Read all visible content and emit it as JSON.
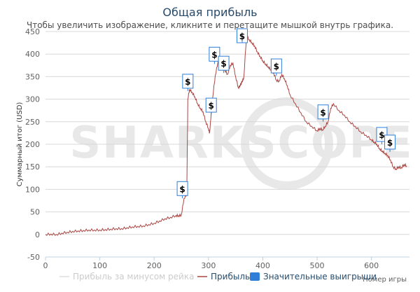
{
  "chart_data": {
    "type": "line",
    "title": "Общая прибыль",
    "subtitle": "Чтобы увеличить изображение, кликните и перетащите мышкой внутрь графика.",
    "ylabel": "Суммарный итог (USD)",
    "xlabel": "Номер игры",
    "xlim": [
      0,
      670
    ],
    "ylim": [
      -50,
      450
    ],
    "xticks": [
      0,
      100,
      200,
      300,
      400,
      500,
      600
    ],
    "yticks": [
      -50,
      0,
      50,
      100,
      150,
      200,
      250,
      300,
      350,
      400,
      450
    ],
    "grid": true,
    "legend_placement": "bottom",
    "series": [
      {
        "name": "Прибыль",
        "color": "#aa4643",
        "x": [
          0,
          10,
          20,
          30,
          40,
          50,
          60,
          70,
          80,
          90,
          100,
          110,
          120,
          130,
          140,
          150,
          160,
          170,
          180,
          190,
          200,
          210,
          220,
          230,
          240,
          245,
          250,
          255,
          260,
          262,
          265,
          270,
          275,
          280,
          285,
          290,
          295,
          300,
          302,
          305,
          310,
          315,
          320,
          325,
          330,
          335,
          340,
          345,
          350,
          355,
          358,
          360,
          362,
          365,
          370,
          375,
          380,
          385,
          390,
          395,
          400,
          405,
          410,
          415,
          420,
          425,
          430,
          435,
          440,
          445,
          450,
          460,
          470,
          480,
          490,
          500,
          505,
          510,
          515,
          520,
          525,
          530,
          540,
          550,
          560,
          570,
          580,
          590,
          600,
          605,
          610,
          615,
          620,
          625,
          630,
          635,
          640,
          645,
          650,
          655,
          660,
          665
        ],
        "y": [
          0,
          1,
          0,
          3,
          5,
          7,
          8,
          9,
          10,
          10,
          10,
          11,
          12,
          13,
          13,
          15,
          17,
          18,
          19,
          22,
          25,
          30,
          35,
          38,
          42,
          42,
          43,
          80,
          90,
          300,
          322,
          315,
          305,
          290,
          280,
          272,
          250,
          235,
          225,
          268,
          330,
          370,
          390,
          375,
          365,
          355,
          375,
          380,
          350,
          325,
          330,
          335,
          340,
          348,
          440,
          432,
          425,
          418,
          405,
          395,
          385,
          378,
          372,
          365,
          358,
          342,
          340,
          355,
          345,
          330,
          310,
          290,
          270,
          250,
          240,
          230,
          235,
          232,
          240,
          250,
          280,
          290,
          275,
          265,
          250,
          240,
          228,
          220,
          210,
          205,
          200,
          190,
          185,
          180,
          175,
          165,
          150,
          145,
          150,
          148,
          155,
          152
        ]
      },
      {
        "name": "Прибыль за минусом рейка",
        "color": "#dddddd",
        "x": [],
        "y": []
      }
    ],
    "markers": {
      "name": "Значительные выигрыши",
      "label": "$",
      "color": "#2f7ed8",
      "points": [
        {
          "x": 252,
          "y": 80
        },
        {
          "x": 262,
          "y": 318
        },
        {
          "x": 305,
          "y": 265
        },
        {
          "x": 311,
          "y": 378
        },
        {
          "x": 328,
          "y": 358
        },
        {
          "x": 362,
          "y": 442
        },
        {
          "x": 425,
          "y": 352
        },
        {
          "x": 511,
          "y": 250
        },
        {
          "x": 619,
          "y": 200
        },
        {
          "x": 634,
          "y": 183
        }
      ]
    }
  },
  "legend": {
    "items": [
      {
        "label": "Прибыль за минусом рейка",
        "color": "#dddddd",
        "kind": "line",
        "hidden": true
      },
      {
        "label": "Прибыль",
        "color": "#aa4643",
        "kind": "line",
        "hidden": false
      },
      {
        "label": "Значительные выигрыши",
        "color": "#2f7ed8",
        "kind": "square",
        "hidden": false
      }
    ]
  },
  "watermark": {
    "text": "SHARKSCOPE",
    "color": "#e8e8e8"
  }
}
